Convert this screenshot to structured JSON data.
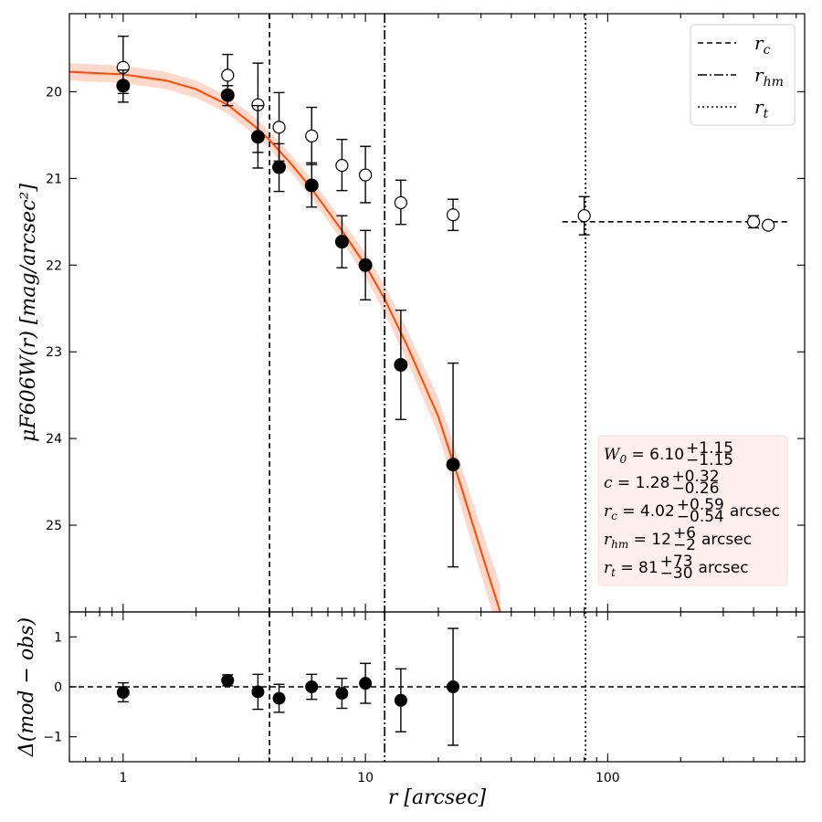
{
  "chart_data": [
    {
      "type": "scatter",
      "panel": "top",
      "ylabel": "μF606W(r)  [mag/arcsec²]",
      "xscale": "log",
      "xlim": [
        0.6,
        650
      ],
      "ylim": [
        26.0,
        19.1
      ],
      "y_inverted": true,
      "yticks": [
        20,
        21,
        22,
        23,
        24,
        25
      ],
      "ytick_labels": [
        "20",
        "21",
        "22",
        "23",
        "24",
        "25"
      ],
      "series": [
        {
          "name": "observed (filled)",
          "marker": "filled-circle",
          "color": "#000000",
          "points": [
            {
              "x": 1.0,
              "y": 19.93,
              "err_lo": 0.18,
              "err_hi": 0.19
            },
            {
              "x": 2.7,
              "y": 20.04,
              "err_lo": 0.11,
              "err_hi": 0.12
            },
            {
              "x": 3.6,
              "y": 20.52,
              "err_lo": 0.36,
              "err_hi": 0.36
            },
            {
              "x": 4.4,
              "y": 20.87,
              "err_lo": 0.27,
              "err_hi": 0.28
            },
            {
              "x": 6.0,
              "y": 21.08,
              "err_lo": 0.26,
              "err_hi": 0.25
            },
            {
              "x": 8.0,
              "y": 21.73,
              "err_lo": 0.3,
              "err_hi": 0.3
            },
            {
              "x": 10.0,
              "y": 22.0,
              "err_lo": 0.4,
              "err_hi": 0.4
            },
            {
              "x": 14.0,
              "y": 23.15,
              "err_lo": 0.63,
              "err_hi": 0.63
            },
            {
              "x": 23.0,
              "y": 24.3,
              "err_lo": 1.17,
              "err_hi": 1.18
            }
          ]
        },
        {
          "name": "observed (open)",
          "marker": "open-circle",
          "color": "#000000",
          "points": [
            {
              "x": 1.0,
              "y": 19.72,
              "err_lo": 0.36,
              "err_hi": 0.3
            },
            {
              "x": 2.7,
              "y": 19.81,
              "err_lo": 0.24,
              "err_hi": 0.2
            },
            {
              "x": 3.6,
              "y": 20.15,
              "err_lo": 0.48,
              "err_hi": 0.55
            },
            {
              "x": 4.4,
              "y": 20.41,
              "err_lo": 0.4,
              "err_hi": 0.39
            },
            {
              "x": 6.0,
              "y": 20.51,
              "err_lo": 0.33,
              "err_hi": 0.33
            },
            {
              "x": 8.0,
              "y": 20.85,
              "err_lo": 0.3,
              "err_hi": 0.29
            },
            {
              "x": 10.0,
              "y": 20.96,
              "err_lo": 0.33,
              "err_hi": 0.32
            },
            {
              "x": 14.0,
              "y": 21.28,
              "err_lo": 0.26,
              "err_hi": 0.25
            },
            {
              "x": 23.0,
              "y": 21.42,
              "err_lo": 0.18,
              "err_hi": 0.18
            },
            {
              "x": 80.0,
              "y": 21.43,
              "err_lo": 0.22,
              "err_hi": 0.22
            },
            {
              "x": 400.0,
              "y": 21.5,
              "err_lo": 0.07,
              "err_hi": 0.07
            },
            {
              "x": 460.0,
              "y": 21.54,
              "err_lo": 0.0,
              "err_hi": 0.0
            }
          ]
        }
      ],
      "background_line": {
        "x": [
          65,
          560
        ],
        "y": 21.5,
        "style": "dashed"
      },
      "model": {
        "name": "King model fit",
        "color": "#ff4a00",
        "band_color": "#fcc8b5",
        "x": [
          0.6,
          1.0,
          1.5,
          2.0,
          2.7,
          3.5,
          4.0,
          5.0,
          6.0,
          8.0,
          10.0,
          12.0,
          15.0,
          20.0,
          25.0,
          30.0,
          36.0
        ],
        "y": [
          19.77,
          19.8,
          19.87,
          19.97,
          20.15,
          20.4,
          20.55,
          20.85,
          21.12,
          21.6,
          22.0,
          22.39,
          22.95,
          23.75,
          24.58,
          25.3,
          26.0
        ],
        "band_halfwidth": [
          0.1,
          0.1,
          0.1,
          0.1,
          0.1,
          0.1,
          0.1,
          0.1,
          0.11,
          0.12,
          0.14,
          0.16,
          0.18,
          0.21,
          0.24,
          0.27,
          0.3
        ]
      },
      "vertical_lines": [
        {
          "name": "r_c",
          "x": 4.02,
          "style": "dashed"
        },
        {
          "name": "r_hm",
          "x": 12.0,
          "style": "dashdot"
        },
        {
          "name": "r_t",
          "x": 81.0,
          "style": "dotted"
        }
      ],
      "legend": {
        "position": "top-right",
        "entries": [
          {
            "style": "dashed",
            "base": "r",
            "sub": "c"
          },
          {
            "style": "dashdot",
            "base": "r",
            "sub": "hm"
          },
          {
            "style": "dotted",
            "base": "r",
            "sub": "t"
          }
        ]
      },
      "parameters": {
        "position": "lower-right",
        "lines": [
          {
            "sym": "W",
            "sub": "0",
            "value": "6.10",
            "plus": "+1.15",
            "minus": "−1.15",
            "unit": ""
          },
          {
            "sym": "c",
            "sub": "",
            "value": "1.28",
            "plus": "+0.32",
            "minus": "−0.26",
            "unit": ""
          },
          {
            "sym": "r",
            "sub": "c",
            "value": "4.02",
            "plus": "+0.59",
            "minus": "−0.54",
            "unit": "arcsec"
          },
          {
            "sym": "r",
            "sub": "hm",
            "value": "12",
            "plus": "+6",
            "minus": "−2",
            "unit": "arcsec"
          },
          {
            "sym": "r",
            "sub": "t",
            "value": "81",
            "plus": "+73",
            "minus": "−30",
            "unit": "arcsec"
          }
        ]
      }
    },
    {
      "type": "scatter",
      "panel": "bottom",
      "xlabel": "r  [arcsec]",
      "ylabel": "Δ(mod − obs)",
      "xscale": "log",
      "xlim": [
        0.6,
        650
      ],
      "ylim": [
        -1.5,
        1.5
      ],
      "yticks": [
        -1,
        0,
        1
      ],
      "ytick_labels": [
        "−1",
        "0",
        "1"
      ],
      "xticks": [
        1,
        10,
        100
      ],
      "xtick_labels": [
        "1",
        "10",
        "100"
      ],
      "zero_line": {
        "y": 0,
        "style": "dashed"
      },
      "points": [
        {
          "x": 1.0,
          "y": -0.11,
          "err_lo": 0.19,
          "err_hi": 0.19
        },
        {
          "x": 2.7,
          "y": 0.13,
          "err_lo": 0.11,
          "err_hi": 0.11
        },
        {
          "x": 3.6,
          "y": -0.1,
          "err_lo": 0.35,
          "err_hi": 0.35
        },
        {
          "x": 4.4,
          "y": -0.23,
          "err_lo": 0.28,
          "err_hi": 0.28
        },
        {
          "x": 6.0,
          "y": 0.0,
          "err_lo": 0.25,
          "err_hi": 0.25
        },
        {
          "x": 8.0,
          "y": -0.13,
          "err_lo": 0.3,
          "err_hi": 0.3
        },
        {
          "x": 10.0,
          "y": 0.07,
          "err_lo": 0.4,
          "err_hi": 0.4
        },
        {
          "x": 14.0,
          "y": -0.27,
          "err_lo": 0.63,
          "err_hi": 0.63
        },
        {
          "x": 23.0,
          "y": 0.0,
          "err_lo": 1.17,
          "err_hi": 1.17
        }
      ]
    }
  ]
}
